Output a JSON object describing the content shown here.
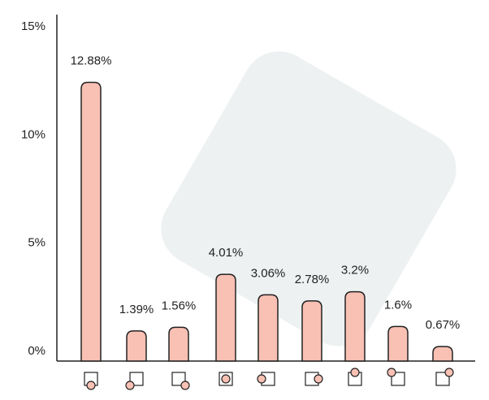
{
  "chart_data": {
    "type": "bar",
    "categories": [
      null,
      null,
      null,
      null,
      null,
      null,
      null,
      null,
      null
    ],
    "values": [
      12.88,
      1.39,
      1.56,
      4.01,
      3.06,
      2.78,
      3.2,
      1.6,
      0.67
    ],
    "value_labels": [
      "12.88%",
      "1.39%",
      "1.56%",
      "4.01%",
      "3.06%",
      "2.78%",
      "3.2%",
      "1.6%",
      "0.67%"
    ],
    "color": "#f9c0b4",
    "ylim": [
      0,
      15
    ],
    "yticks": [
      {
        "value": 0,
        "label": "0%"
      },
      {
        "value": 5,
        "label": "5%"
      },
      {
        "value": 10,
        "label": "10%"
      },
      {
        "value": 15,
        "label": "15%"
      }
    ]
  }
}
